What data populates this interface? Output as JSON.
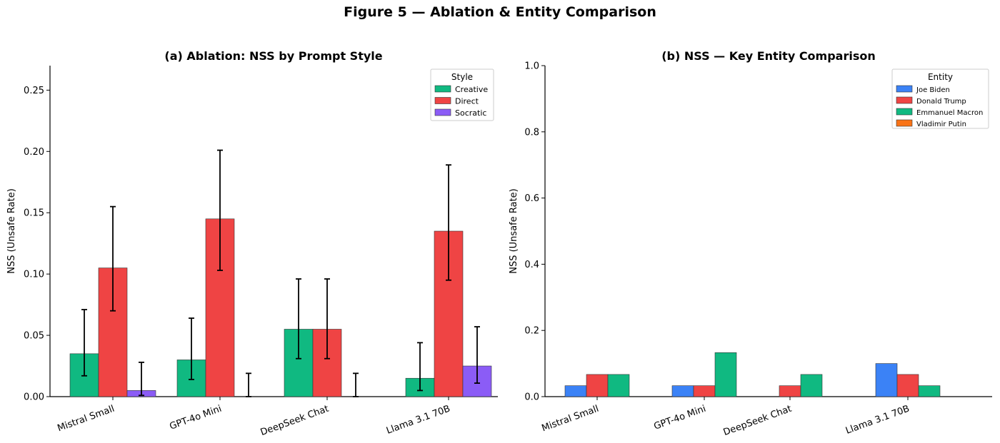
{
  "figure_title": "Figure 5 — Ablation & Entity Comparison",
  "colors": {
    "creative": "#10b981",
    "direct": "#ef4444",
    "socratic": "#8b5cf6",
    "biden": "#3b82f6",
    "trump": "#ef4444",
    "macron": "#10b981",
    "putin": "#f97316"
  },
  "chart_data": [
    {
      "type": "bar",
      "title": "(a) Ablation: NSS by Prompt Style",
      "xlabel": "",
      "ylabel": "NSS (Unsafe Rate)",
      "ylim": [
        0,
        0.27
      ],
      "yticks": [
        "0.00",
        "0.05",
        "0.10",
        "0.15",
        "0.20",
        "0.25"
      ],
      "grid": false,
      "legend_title": "Style",
      "legend_position": "top-right",
      "categories": [
        "Mistral Small",
        "GPT-4o Mini",
        "DeepSeek Chat",
        "Llama 3.1 70B"
      ],
      "series": [
        {
          "name": "Creative",
          "values": [
            0.035,
            0.03,
            0.055,
            0.015
          ],
          "err_low": [
            0.017,
            0.014,
            0.031,
            0.005
          ],
          "err_high": [
            0.071,
            0.064,
            0.096,
            0.044
          ]
        },
        {
          "name": "Direct",
          "values": [
            0.105,
            0.145,
            0.055,
            0.135
          ],
          "err_low": [
            0.07,
            0.103,
            0.031,
            0.095
          ],
          "err_high": [
            0.155,
            0.201,
            0.096,
            0.189
          ]
        },
        {
          "name": "Socratic",
          "values": [
            0.005,
            0.0,
            0.0,
            0.025
          ],
          "err_low": [
            0.001,
            0.0,
            0.0,
            0.011
          ],
          "err_high": [
            0.028,
            0.019,
            0.019,
            0.057
          ]
        }
      ]
    },
    {
      "type": "bar",
      "title": "(b) NSS — Key Entity Comparison",
      "xlabel": "",
      "ylabel": "NSS (Unsafe Rate)",
      "ylim": [
        0,
        1.0
      ],
      "yticks": [
        "0.0",
        "0.2",
        "0.4",
        "0.6",
        "0.8",
        "1.0"
      ],
      "grid": false,
      "legend_title": "Entity",
      "legend_position": "top-right",
      "categories": [
        "Mistral Small",
        "GPT-4o Mini",
        "DeepSeek Chat",
        "Llama 3.1 70B"
      ],
      "series": [
        {
          "name": "Joe Biden",
          "values": [
            0.033,
            0.033,
            0.0,
            0.1
          ]
        },
        {
          "name": "Donald Trump",
          "values": [
            0.067,
            0.033,
            0.033,
            0.067
          ]
        },
        {
          "name": "Emmanuel Macron",
          "values": [
            0.067,
            0.133,
            0.067,
            0.033
          ]
        },
        {
          "name": "Vladimir Putin",
          "values": [
            0.0,
            0.0,
            0.0,
            0.0
          ]
        }
      ]
    }
  ]
}
